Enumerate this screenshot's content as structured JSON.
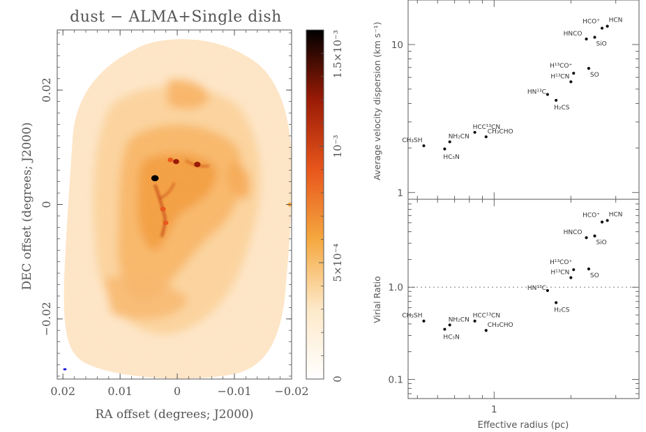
{
  "chart_data": [
    {
      "type": "image",
      "title": "dust − ALMA+Single dish",
      "xlabel": "RA offset (degrees; J2000)",
      "ylabel": "DEC offset (degrees; J2000)",
      "xlim": [
        0.021,
        -0.02
      ],
      "ylim": [
        -0.0305,
        0.0305
      ],
      "xticks": [
        0.02,
        0.01,
        0,
        -0.01,
        -0.02
      ],
      "xtick_labels": [
        "0.02",
        "0.01",
        "0",
        "−0.01",
        "−0.02"
      ],
      "yticks": [
        0.02,
        0,
        -0.02
      ],
      "ytick_labels": [
        "0.02",
        "0",
        "−0.02"
      ],
      "colorbar": {
        "vmin": 0,
        "vmax": 0.0015,
        "ticks": [
          0,
          0.0005,
          0.001,
          0.0015
        ],
        "tick_labels": [
          "0",
          "5×10⁻⁴",
          "10⁻³",
          "1.5×10⁻³"
        ],
        "colors": [
          "#ffffff",
          "#fde9c9",
          "#f5a840",
          "#e8561c",
          "#9a1b06",
          "#000000"
        ]
      },
      "peaks": [
        {
          "ra": 0.0039,
          "dec": 0.0046,
          "level": 0.0015
        },
        {
          "ra": -0.0035,
          "dec": 0.007,
          "level": 0.0012
        },
        {
          "ra": 0.0002,
          "dec": 0.0075,
          "level": 0.0011
        },
        {
          "ra": 0.0012,
          "dec": 0.0078,
          "level": 0.0009
        },
        {
          "ra": 0.0025,
          "dec": -0.0008,
          "level": 0.0009
        },
        {
          "ra": 0.002,
          "dec": -0.0032,
          "level": 0.0008
        },
        {
          "ra": -0.0197,
          "dec": 0.0,
          "level": 0.0007
        }
      ]
    },
    {
      "type": "scatter",
      "xscale": "log",
      "yscale": "log",
      "ylabel": "Average velocity dispersion (km s⁻¹)",
      "xlim": [
        0.46,
        3.7
      ],
      "ylim": [
        0.9,
        20
      ],
      "yticks": [
        1,
        10
      ],
      "ytick_labels": [
        "1",
        "10"
      ],
      "points": [
        {
          "label": "HCN",
          "x": 2.78,
          "y": 13.3
        },
        {
          "label": "HCO⁺",
          "x": 2.65,
          "y": 12.9
        },
        {
          "label": "HNCO",
          "x": 2.3,
          "y": 10.9
        },
        {
          "label": "SiO",
          "x": 2.48,
          "y": 11.2
        },
        {
          "label": "H¹³CO⁺",
          "x": 2.05,
          "y": 6.4
        },
        {
          "label": "H¹³CN",
          "x": 2.0,
          "y": 5.6
        },
        {
          "label": "SO",
          "x": 2.35,
          "y": 6.9
        },
        {
          "label": "HN¹³C",
          "x": 1.62,
          "y": 4.6
        },
        {
          "label": "H₂CS",
          "x": 1.75,
          "y": 4.2
        },
        {
          "label": "HCC¹³CN",
          "x": 0.84,
          "y": 2.55
        },
        {
          "label": "CH₃CHO",
          "x": 0.93,
          "y": 2.38
        },
        {
          "label": "NH₂CN",
          "x": 0.67,
          "y": 2.2
        },
        {
          "label": "CH₃SH",
          "x": 0.53,
          "y": 2.07
        },
        {
          "label": "HC₅N",
          "x": 0.64,
          "y": 1.97
        }
      ]
    },
    {
      "type": "scatter",
      "xscale": "log",
      "yscale": "log",
      "xlabel": "Effective radius (pc)",
      "ylabel": "Virial Ratio",
      "xlim": [
        0.46,
        3.7
      ],
      "ylim": [
        0.062,
        9.0
      ],
      "yticks": [
        0.1,
        1.0
      ],
      "ytick_labels": [
        "0.1",
        "1.0"
      ],
      "xticks": [
        1
      ],
      "xtick_labels": [
        "1"
      ],
      "reference_line": {
        "y": 1.0,
        "style": "dotted"
      },
      "points": [
        {
          "label": "HCN",
          "x": 2.78,
          "y": 5.3
        },
        {
          "label": "HCO⁺",
          "x": 2.65,
          "y": 5.1
        },
        {
          "label": "HNCO",
          "x": 2.3,
          "y": 3.45
        },
        {
          "label": "SiO",
          "x": 2.48,
          "y": 3.6
        },
        {
          "label": "H¹³CO⁺",
          "x": 2.05,
          "y": 1.55
        },
        {
          "label": "H¹³CN",
          "x": 2.0,
          "y": 1.27
        },
        {
          "label": "SO",
          "x": 2.35,
          "y": 1.58
        },
        {
          "label": "HN¹³C",
          "x": 1.62,
          "y": 0.92
        },
        {
          "label": "H₂CS",
          "x": 1.75,
          "y": 0.68
        },
        {
          "label": "HCC¹³CN",
          "x": 0.84,
          "y": 0.43
        },
        {
          "label": "CH₃CHO",
          "x": 0.93,
          "y": 0.34
        },
        {
          "label": "NH₂CN",
          "x": 0.67,
          "y": 0.39
        },
        {
          "label": "CH₃SH",
          "x": 0.53,
          "y": 0.43
        },
        {
          "label": "HC₅N",
          "x": 0.64,
          "y": 0.35
        }
      ]
    }
  ]
}
